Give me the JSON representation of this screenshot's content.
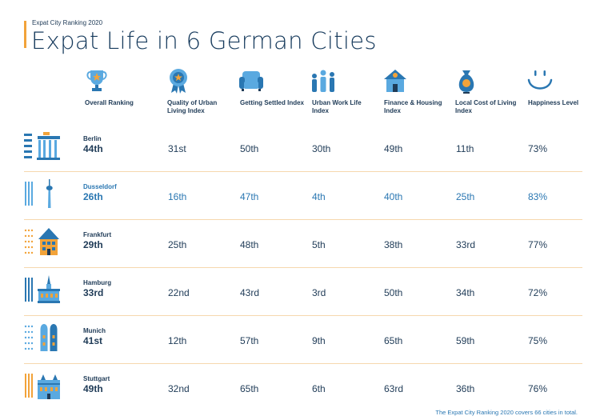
{
  "header": {
    "subtitle": "Expat City Ranking 2020",
    "title": "Expat Life in 6 German Cities"
  },
  "columns": [
    {
      "key": "overall",
      "label": "Overall Ranking",
      "icon": "trophy-icon"
    },
    {
      "key": "quality",
      "label": "Quality of Urban Living Index",
      "icon": "medal-icon"
    },
    {
      "key": "settled",
      "label": "Getting Settled Index",
      "icon": "sofa-icon"
    },
    {
      "key": "work",
      "label": "Urban Work Life Index",
      "icon": "people-icon"
    },
    {
      "key": "finance",
      "label": "Finance & Housing Index",
      "icon": "house-icon"
    },
    {
      "key": "cost",
      "label": "Local Cost of Living Index",
      "icon": "money-bag-icon"
    },
    {
      "key": "happiness",
      "label": "Happiness Level",
      "icon": "smile-icon"
    }
  ],
  "chart_data": {
    "type": "table",
    "headers": [
      "Overall Ranking",
      "Quality of Urban Living Index",
      "Getting Settled Index",
      "Urban Work Life Index",
      "Finance & Housing Index",
      "Local Cost of Living Index",
      "Happiness Level"
    ],
    "rows": [
      {
        "city": "Berlin",
        "overall": "44th",
        "quality": "31st",
        "settled": "50th",
        "work": "30th",
        "finance": "49th",
        "cost": "11th",
        "happiness": "73%",
        "icon": "brandenburg-gate-icon",
        "highlight": false
      },
      {
        "city": "Dusseldorf",
        "overall": "26th",
        "quality": "16th",
        "settled": "47th",
        "work": "4th",
        "finance": "40th",
        "cost": "25th",
        "happiness": "83%",
        "icon": "tv-tower-icon",
        "highlight": true
      },
      {
        "city": "Frankfurt",
        "overall": "29th",
        "quality": "25th",
        "settled": "48th",
        "work": "5th",
        "finance": "38th",
        "cost": "33rd",
        "happiness": "77%",
        "icon": "timber-house-icon",
        "highlight": false
      },
      {
        "city": "Hamburg",
        "overall": "33rd",
        "quality": "22nd",
        "settled": "43rd",
        "work": "3rd",
        "finance": "50th",
        "cost": "34th",
        "happiness": "72%",
        "icon": "town-hall-icon",
        "highlight": false
      },
      {
        "city": "Munich",
        "overall": "41st",
        "quality": "12th",
        "settled": "57th",
        "work": "9th",
        "finance": "65th",
        "cost": "59th",
        "happiness": "75%",
        "icon": "frauenkirche-icon",
        "highlight": false
      },
      {
        "city": "Stuttgart",
        "overall": "49th",
        "quality": "32nd",
        "settled": "65th",
        "work": "6th",
        "finance": "63rd",
        "cost": "36th",
        "happiness": "76%",
        "icon": "castle-icon",
        "highlight": false
      }
    ]
  },
  "footnote": "The Expat City Ranking 2020 covers 66 cities in total.",
  "colors": {
    "navy": "#1f3b57",
    "blue": "#2a77b2",
    "light_blue": "#5aa9e0",
    "orange": "#f2a33a",
    "divider": "#f6d7ae"
  }
}
